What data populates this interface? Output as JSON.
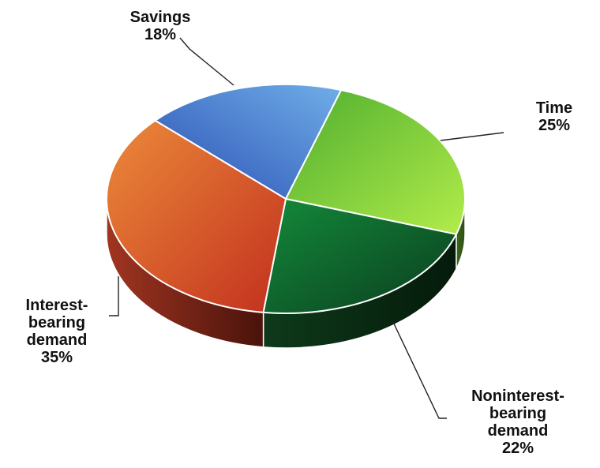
{
  "chart_data": {
    "type": "pie",
    "title": "",
    "legend": "none",
    "slices": [
      {
        "name": "Savings",
        "value": 18,
        "label_lines": [
          "Savings",
          "18%"
        ],
        "color": "#3a68c4"
      },
      {
        "name": "Time",
        "value": 25,
        "label_lines": [
          "Time",
          "25%"
        ],
        "color": "#7fcf3a"
      },
      {
        "name": "Noninterest-bearing demand",
        "value": 22,
        "label_lines": [
          "Noninterest-",
          "bearing",
          "demand",
          "22%"
        ],
        "color": "#1b7a38"
      },
      {
        "name": "Interest-bearing demand",
        "value": 35,
        "label_lines": [
          "Interest-",
          "bearing",
          "demand",
          "35%"
        ],
        "color": "#d2492b"
      }
    ]
  }
}
